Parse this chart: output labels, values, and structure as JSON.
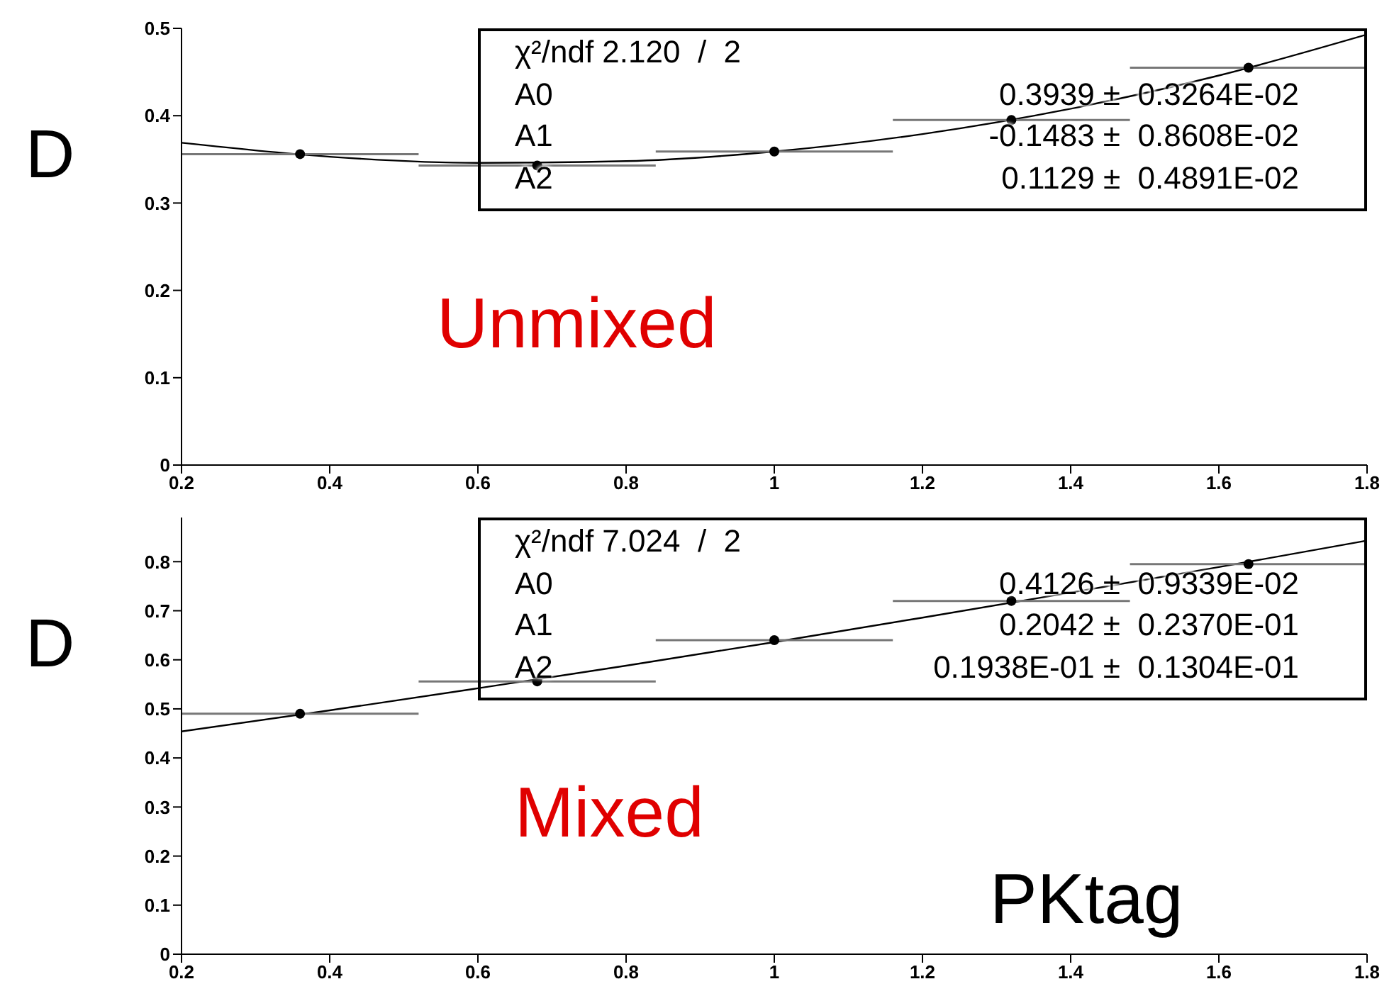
{
  "chart_data": [
    {
      "type": "scatter",
      "ylabel": "D",
      "marker": "circle",
      "xlim": [
        0.2,
        1.8
      ],
      "xticks": [
        0.2,
        0.4,
        0.6,
        0.8,
        1,
        1.2,
        1.4,
        1.6,
        1.8
      ],
      "ylim": [
        0,
        0.5
      ],
      "yticks": [
        0,
        0.1,
        0.2,
        0.3,
        0.4,
        0.5
      ],
      "series": [
        {
          "color": "#000000",
          "x": [
            0.36,
            0.68,
            1.0,
            1.32,
            1.64
          ],
          "values": [
            0.356,
            0.343,
            0.359,
            0.395,
            0.455
          ],
          "xerrors": [
            0.16,
            0.16,
            0.16,
            0.16,
            0.16
          ]
        },
        {
          "type": "line",
          "marker": "none",
          "color": "#000000",
          "x": [
            0.2,
            0.4,
            0.6,
            0.8,
            1.0,
            1.2,
            1.4,
            1.6,
            1.8
          ],
          "values": [
            0.369,
            0.353,
            0.346,
            0.348,
            0.359,
            0.379,
            0.408,
            0.446,
            0.493
          ]
        }
      ],
      "annotations": [
        "χ²/ndf 2.120  /  2",
        "A0 0.3939 ±  0.3264E-02",
        "A1 -0.1483 ±  0.8608E-02",
        "A2 0.1129 ±  0.4891E-02",
        "Unmixed"
      ]
    },
    {
      "type": "scatter",
      "ylabel": "D",
      "xlabel": "PKtag",
      "marker": "circle",
      "xlim": [
        0.2,
        1.8
      ],
      "xticks": [
        0.2,
        0.4,
        0.6,
        0.8,
        1,
        1.2,
        1.4,
        1.6,
        1.8
      ],
      "ylim": [
        0,
        0.89
      ],
      "yticks": [
        0,
        0.1,
        0.2,
        0.3,
        0.4,
        0.5,
        0.6,
        0.7,
        0.8
      ],
      "series": [
        {
          "color": "#000000",
          "x": [
            0.36,
            0.68,
            1.0,
            1.32,
            1.64
          ],
          "values": [
            0.49,
            0.556,
            0.64,
            0.72,
            0.795
          ],
          "xerrors": [
            0.16,
            0.16,
            0.16,
            0.16,
            0.16
          ]
        },
        {
          "type": "line",
          "marker": "none",
          "color": "#000000",
          "x": [
            0.2,
            0.4,
            0.6,
            0.8,
            1.0,
            1.2,
            1.4,
            1.6,
            1.8
          ],
          "values": [
            0.454,
            0.497,
            0.542,
            0.588,
            0.636,
            0.686,
            0.737,
            0.789,
            0.843
          ]
        }
      ],
      "annotations": [
        "χ²/ndf 7.024  /  2",
        "A0 0.4126 ±  0.9339E-02",
        "A1 0.2042 ±  0.2370E-01",
        "A2 0.1938E-01 ±  0.1304E-01",
        "Mixed"
      ]
    }
  ]
}
